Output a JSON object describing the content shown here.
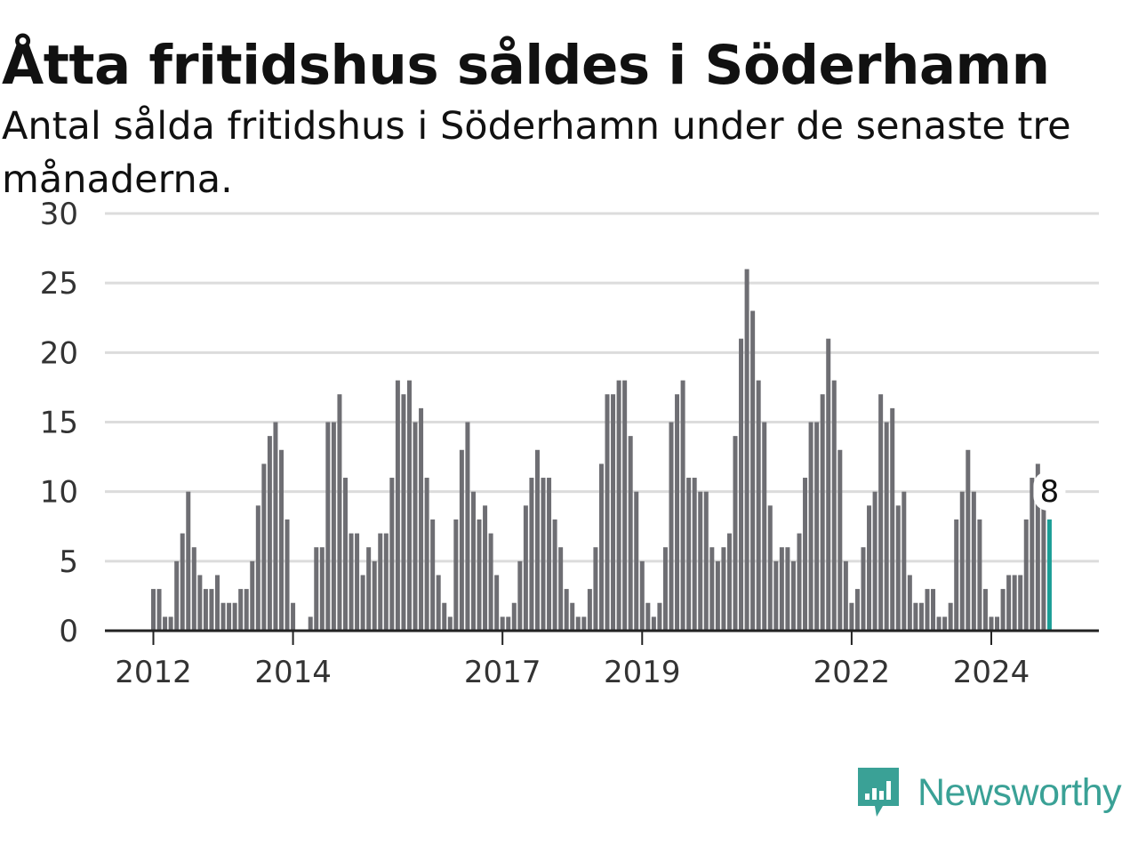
{
  "title": "Åtta fritidshus såldes i Söderhamn",
  "subtitle": "Antal sålda fritidshus i Söderhamn under de senaste tre månaderna.",
  "brand": {
    "name": "Newsworthy",
    "icon": "newsworthy-logo-icon",
    "color": "#3aa196"
  },
  "chart_data": {
    "type": "bar",
    "title": "Åtta fritidshus såldes i Söderhamn",
    "subtitle": "Antal sålda fritidshus i Söderhamn under de senaste tre månaderna.",
    "xlabel": "",
    "ylabel": "",
    "ylim": [
      0,
      30
    ],
    "yticks": [
      "0",
      "5",
      "10",
      "15",
      "20",
      "25",
      "30"
    ],
    "xticks": [
      "2012",
      "2014",
      "2017",
      "2019",
      "2022",
      "2024"
    ],
    "grid": true,
    "x_start": "2012-01",
    "bar_color": "#6e6e73",
    "highlight_color": "#1a9e96",
    "highlight_label": "8",
    "values": [
      3,
      3,
      1,
      1,
      5,
      7,
      10,
      6,
      4,
      3,
      3,
      4,
      2,
      2,
      2,
      3,
      3,
      5,
      9,
      12,
      14,
      15,
      13,
      8,
      2,
      0,
      0,
      1,
      6,
      6,
      15,
      15,
      17,
      11,
      7,
      7,
      4,
      6,
      5,
      7,
      7,
      11,
      18,
      17,
      18,
      15,
      16,
      11,
      8,
      4,
      2,
      1,
      8,
      13,
      15,
      10,
      8,
      9,
      7,
      4,
      1,
      1,
      2,
      5,
      9,
      11,
      13,
      11,
      11,
      8,
      6,
      3,
      2,
      1,
      1,
      3,
      6,
      12,
      17,
      17,
      18,
      18,
      14,
      10,
      5,
      2,
      1,
      2,
      6,
      15,
      17,
      18,
      11,
      11,
      10,
      10,
      6,
      5,
      6,
      7,
      14,
      21,
      26,
      23,
      18,
      15,
      9,
      5,
      6,
      6,
      5,
      7,
      11,
      15,
      15,
      17,
      21,
      18,
      13,
      5,
      2,
      3,
      6,
      9,
      10,
      17,
      15,
      16,
      9,
      10,
      4,
      2,
      2,
      3,
      3,
      1,
      1,
      2,
      8,
      10,
      13,
      10,
      8,
      3,
      1,
      1,
      3,
      4,
      4,
      4,
      8,
      11,
      12,
      10,
      8
    ]
  }
}
